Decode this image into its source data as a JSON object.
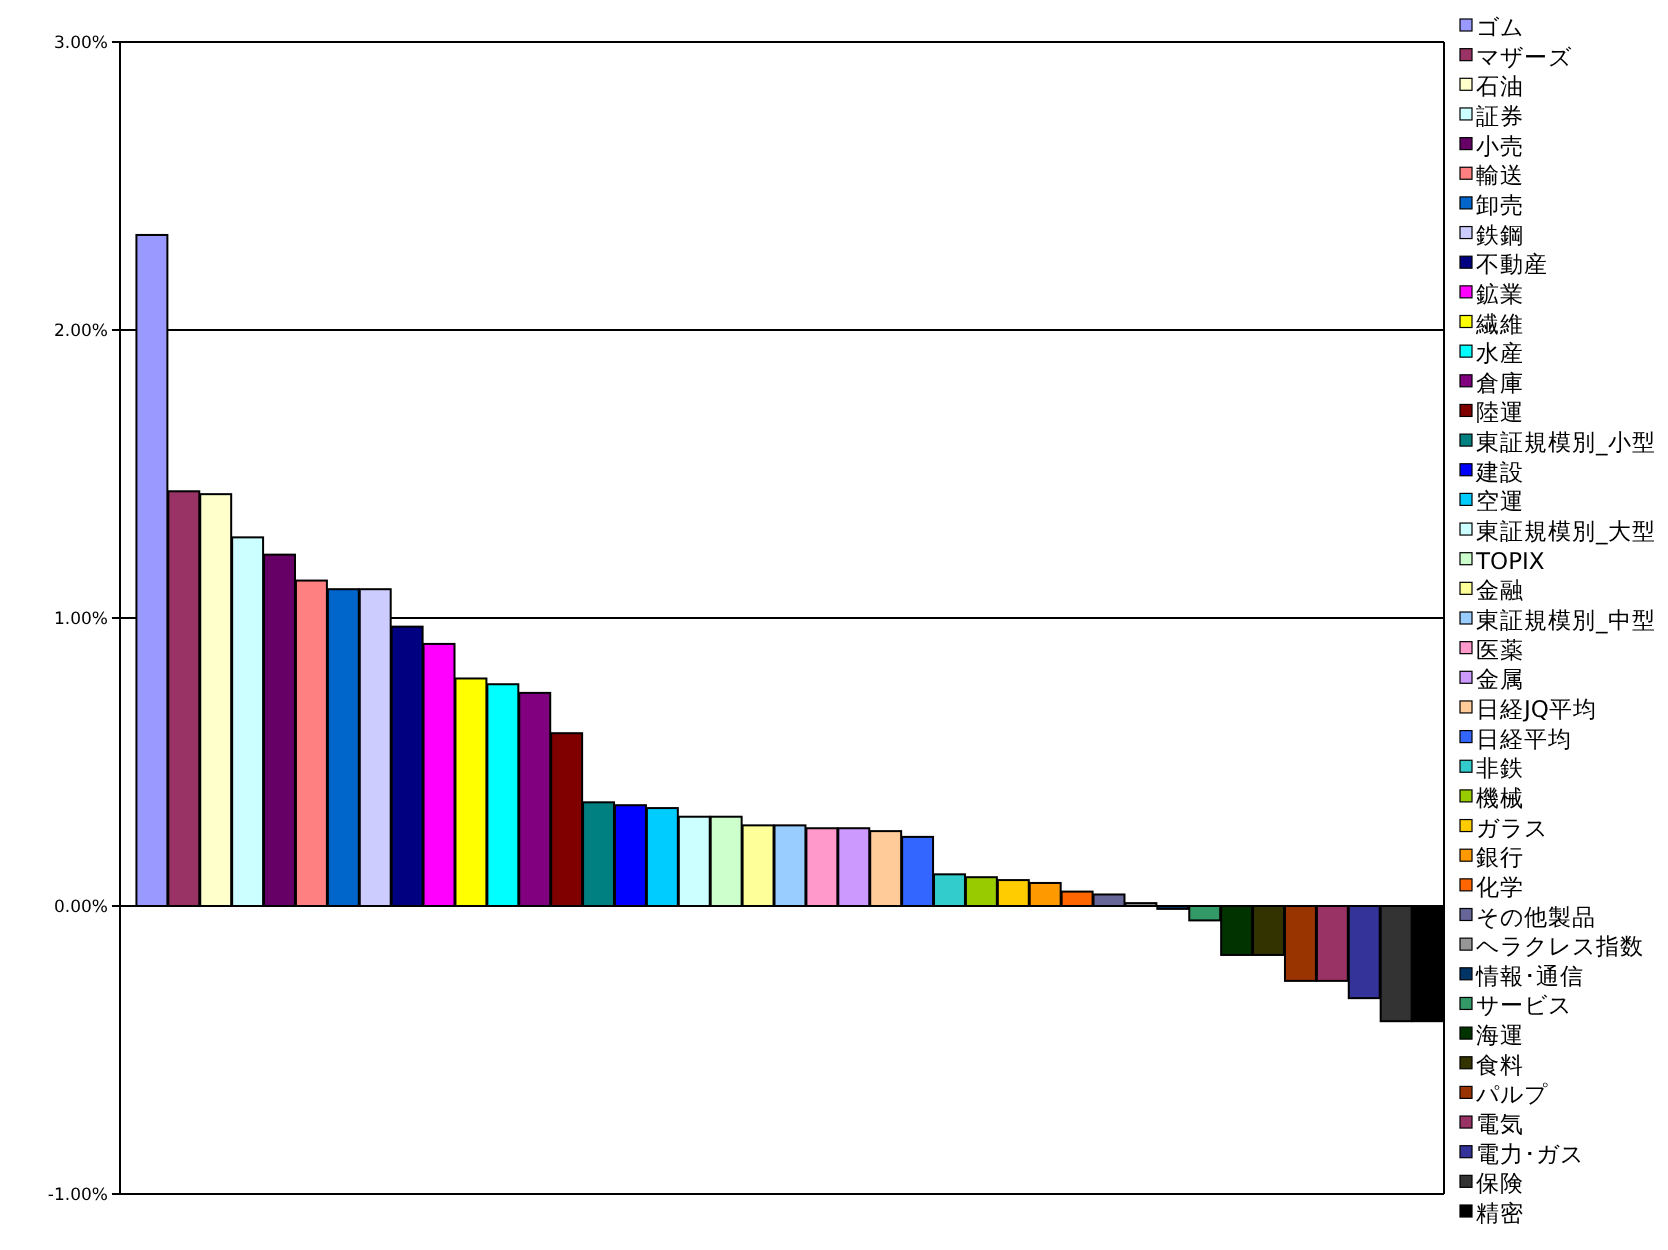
{
  "chart_data": {
    "type": "bar",
    "categories": [
      null,
      null,
      null,
      null,
      null,
      null,
      null,
      null,
      null,
      null,
      null,
      null,
      null,
      null,
      null,
      null,
      null,
      null,
      null,
      null,
      null,
      null,
      null,
      null,
      null,
      null,
      null,
      null,
      null,
      null,
      null,
      null,
      null,
      null,
      null,
      null,
      null,
      null,
      null,
      null,
      null
    ],
    "series": [
      {
        "name": "ゴム",
        "color": "#9999ff",
        "values": [
          2.33,
          null,
          null,
          null,
          null,
          null,
          null,
          null,
          null,
          null,
          null,
          null,
          null,
          null,
          null,
          null,
          null,
          null,
          null,
          null,
          null,
          null,
          null,
          null,
          null,
          null,
          null,
          null,
          null,
          null,
          null,
          null,
          null,
          null,
          null,
          null,
          null,
          null,
          null,
          null,
          null
        ]
      },
      {
        "name": "マザーズ",
        "color": "#993366",
        "values": [
          null,
          1.44,
          null,
          null,
          null,
          null,
          null,
          null,
          null,
          null,
          null,
          null,
          null,
          null,
          null,
          null,
          null,
          null,
          null,
          null,
          null,
          null,
          null,
          null,
          null,
          null,
          null,
          null,
          null,
          null,
          null,
          null,
          null,
          null,
          null,
          null,
          null,
          null,
          null,
          null,
          null
        ]
      },
      {
        "name": "石油",
        "color": "#ffffcc",
        "values": [
          null,
          null,
          1.43,
          null,
          null,
          null,
          null,
          null,
          null,
          null,
          null,
          null,
          null,
          null,
          null,
          null,
          null,
          null,
          null,
          null,
          null,
          null,
          null,
          null,
          null,
          null,
          null,
          null,
          null,
          null,
          null,
          null,
          null,
          null,
          null,
          null,
          null,
          null,
          null,
          null,
          null
        ]
      },
      {
        "name": "証券",
        "color": "#ccffff",
        "values": [
          null,
          null,
          null,
          1.28,
          null,
          null,
          null,
          null,
          null,
          null,
          null,
          null,
          null,
          null,
          null,
          null,
          null,
          null,
          null,
          null,
          null,
          null,
          null,
          null,
          null,
          null,
          null,
          null,
          null,
          null,
          null,
          null,
          null,
          null,
          null,
          null,
          null,
          null,
          null,
          null,
          null
        ]
      },
      {
        "name": "小売",
        "color": "#660066",
        "values": [
          null,
          null,
          null,
          null,
          1.22,
          null,
          null,
          null,
          null,
          null,
          null,
          null,
          null,
          null,
          null,
          null,
          null,
          null,
          null,
          null,
          null,
          null,
          null,
          null,
          null,
          null,
          null,
          null,
          null,
          null,
          null,
          null,
          null,
          null,
          null,
          null,
          null,
          null,
          null,
          null,
          null
        ]
      },
      {
        "name": "輸送",
        "color": "#ff8080",
        "values": [
          null,
          null,
          null,
          null,
          null,
          1.13,
          null,
          null,
          null,
          null,
          null,
          null,
          null,
          null,
          null,
          null,
          null,
          null,
          null,
          null,
          null,
          null,
          null,
          null,
          null,
          null,
          null,
          null,
          null,
          null,
          null,
          null,
          null,
          null,
          null,
          null,
          null,
          null,
          null,
          null,
          null
        ]
      },
      {
        "name": "卸売",
        "color": "#0066cc",
        "values": [
          null,
          null,
          null,
          null,
          null,
          null,
          1.1,
          null,
          null,
          null,
          null,
          null,
          null,
          null,
          null,
          null,
          null,
          null,
          null,
          null,
          null,
          null,
          null,
          null,
          null,
          null,
          null,
          null,
          null,
          null,
          null,
          null,
          null,
          null,
          null,
          null,
          null,
          null,
          null,
          null,
          null
        ]
      },
      {
        "name": "鉄鋼",
        "color": "#ccccff",
        "values": [
          null,
          null,
          null,
          null,
          null,
          null,
          null,
          1.1,
          null,
          null,
          null,
          null,
          null,
          null,
          null,
          null,
          null,
          null,
          null,
          null,
          null,
          null,
          null,
          null,
          null,
          null,
          null,
          null,
          null,
          null,
          null,
          null,
          null,
          null,
          null,
          null,
          null,
          null,
          null,
          null,
          null
        ]
      },
      {
        "name": "不動産",
        "color": "#000080",
        "values": [
          null,
          null,
          null,
          null,
          null,
          null,
          null,
          null,
          0.97,
          null,
          null,
          null,
          null,
          null,
          null,
          null,
          null,
          null,
          null,
          null,
          null,
          null,
          null,
          null,
          null,
          null,
          null,
          null,
          null,
          null,
          null,
          null,
          null,
          null,
          null,
          null,
          null,
          null,
          null,
          null,
          null
        ]
      },
      {
        "name": "鉱業",
        "color": "#ff00ff",
        "values": [
          null,
          null,
          null,
          null,
          null,
          null,
          null,
          null,
          null,
          0.91,
          null,
          null,
          null,
          null,
          null,
          null,
          null,
          null,
          null,
          null,
          null,
          null,
          null,
          null,
          null,
          null,
          null,
          null,
          null,
          null,
          null,
          null,
          null,
          null,
          null,
          null,
          null,
          null,
          null,
          null,
          null
        ]
      },
      {
        "name": "繊維",
        "color": "#ffff00",
        "values": [
          null,
          null,
          null,
          null,
          null,
          null,
          null,
          null,
          null,
          null,
          0.79,
          null,
          null,
          null,
          null,
          null,
          null,
          null,
          null,
          null,
          null,
          null,
          null,
          null,
          null,
          null,
          null,
          null,
          null,
          null,
          null,
          null,
          null,
          null,
          null,
          null,
          null,
          null,
          null,
          null,
          null
        ]
      },
      {
        "name": "水産",
        "color": "#00ffff",
        "values": [
          null,
          null,
          null,
          null,
          null,
          null,
          null,
          null,
          null,
          null,
          null,
          0.77,
          null,
          null,
          null,
          null,
          null,
          null,
          null,
          null,
          null,
          null,
          null,
          null,
          null,
          null,
          null,
          null,
          null,
          null,
          null,
          null,
          null,
          null,
          null,
          null,
          null,
          null,
          null,
          null,
          null
        ]
      },
      {
        "name": "倉庫",
        "color": "#800080",
        "values": [
          null,
          null,
          null,
          null,
          null,
          null,
          null,
          null,
          null,
          null,
          null,
          null,
          0.74,
          null,
          null,
          null,
          null,
          null,
          null,
          null,
          null,
          null,
          null,
          null,
          null,
          null,
          null,
          null,
          null,
          null,
          null,
          null,
          null,
          null,
          null,
          null,
          null,
          null,
          null,
          null,
          null
        ]
      },
      {
        "name": "陸運",
        "color": "#800000",
        "values": [
          null,
          null,
          null,
          null,
          null,
          null,
          null,
          null,
          null,
          null,
          null,
          null,
          null,
          0.6,
          null,
          null,
          null,
          null,
          null,
          null,
          null,
          null,
          null,
          null,
          null,
          null,
          null,
          null,
          null,
          null,
          null,
          null,
          null,
          null,
          null,
          null,
          null,
          null,
          null,
          null,
          null
        ]
      },
      {
        "name": "東証規模別_小型",
        "color": "#008080",
        "values": [
          null,
          null,
          null,
          null,
          null,
          null,
          null,
          null,
          null,
          null,
          null,
          null,
          null,
          null,
          0.36,
          null,
          null,
          null,
          null,
          null,
          null,
          null,
          null,
          null,
          null,
          null,
          null,
          null,
          null,
          null,
          null,
          null,
          null,
          null,
          null,
          null,
          null,
          null,
          null,
          null,
          null
        ]
      },
      {
        "name": "建設",
        "color": "#0000ff",
        "values": [
          null,
          null,
          null,
          null,
          null,
          null,
          null,
          null,
          null,
          null,
          null,
          null,
          null,
          null,
          null,
          0.35,
          null,
          null,
          null,
          null,
          null,
          null,
          null,
          null,
          null,
          null,
          null,
          null,
          null,
          null,
          null,
          null,
          null,
          null,
          null,
          null,
          null,
          null,
          null,
          null,
          null
        ]
      },
      {
        "name": "空運",
        "color": "#00ccff",
        "values": [
          null,
          null,
          null,
          null,
          null,
          null,
          null,
          null,
          null,
          null,
          null,
          null,
          null,
          null,
          null,
          null,
          0.34,
          null,
          null,
          null,
          null,
          null,
          null,
          null,
          null,
          null,
          null,
          null,
          null,
          null,
          null,
          null,
          null,
          null,
          null,
          null,
          null,
          null,
          null,
          null,
          null
        ]
      },
      {
        "name": "東証規模別_大型",
        "color": "#ccffff",
        "values": [
          null,
          null,
          null,
          null,
          null,
          null,
          null,
          null,
          null,
          null,
          null,
          null,
          null,
          null,
          null,
          null,
          null,
          0.31,
          null,
          null,
          null,
          null,
          null,
          null,
          null,
          null,
          null,
          null,
          null,
          null,
          null,
          null,
          null,
          null,
          null,
          null,
          null,
          null,
          null,
          null,
          null
        ]
      },
      {
        "name": "TOPIX",
        "color": "#ccffcc",
        "values": [
          null,
          null,
          null,
          null,
          null,
          null,
          null,
          null,
          null,
          null,
          null,
          null,
          null,
          null,
          null,
          null,
          null,
          null,
          0.31,
          null,
          null,
          null,
          null,
          null,
          null,
          null,
          null,
          null,
          null,
          null,
          null,
          null,
          null,
          null,
          null,
          null,
          null,
          null,
          null,
          null,
          null
        ]
      },
      {
        "name": "金融",
        "color": "#ffff99",
        "values": [
          null,
          null,
          null,
          null,
          null,
          null,
          null,
          null,
          null,
          null,
          null,
          null,
          null,
          null,
          null,
          null,
          null,
          null,
          null,
          0.28,
          null,
          null,
          null,
          null,
          null,
          null,
          null,
          null,
          null,
          null,
          null,
          null,
          null,
          null,
          null,
          null,
          null,
          null,
          null,
          null,
          null
        ]
      },
      {
        "name": "東証規模別_中型",
        "color": "#99ccff",
        "values": [
          null,
          null,
          null,
          null,
          null,
          null,
          null,
          null,
          null,
          null,
          null,
          null,
          null,
          null,
          null,
          null,
          null,
          null,
          null,
          null,
          0.28,
          null,
          null,
          null,
          null,
          null,
          null,
          null,
          null,
          null,
          null,
          null,
          null,
          null,
          null,
          null,
          null,
          null,
          null,
          null,
          null
        ]
      },
      {
        "name": "医薬",
        "color": "#ff99cc",
        "values": [
          null,
          null,
          null,
          null,
          null,
          null,
          null,
          null,
          null,
          null,
          null,
          null,
          null,
          null,
          null,
          null,
          null,
          null,
          null,
          null,
          null,
          0.27,
          null,
          null,
          null,
          null,
          null,
          null,
          null,
          null,
          null,
          null,
          null,
          null,
          null,
          null,
          null,
          null,
          null,
          null,
          null
        ]
      },
      {
        "name": "金属",
        "color": "#cc99ff",
        "values": [
          null,
          null,
          null,
          null,
          null,
          null,
          null,
          null,
          null,
          null,
          null,
          null,
          null,
          null,
          null,
          null,
          null,
          null,
          null,
          null,
          null,
          null,
          0.27,
          null,
          null,
          null,
          null,
          null,
          null,
          null,
          null,
          null,
          null,
          null,
          null,
          null,
          null,
          null,
          null,
          null,
          null
        ]
      },
      {
        "name": "日経JQ平均",
        "color": "#ffcc99",
        "values": [
          null,
          null,
          null,
          null,
          null,
          null,
          null,
          null,
          null,
          null,
          null,
          null,
          null,
          null,
          null,
          null,
          null,
          null,
          null,
          null,
          null,
          null,
          null,
          0.26,
          null,
          null,
          null,
          null,
          null,
          null,
          null,
          null,
          null,
          null,
          null,
          null,
          null,
          null,
          null,
          null,
          null
        ]
      },
      {
        "name": "日経平均",
        "color": "#3366ff",
        "values": [
          null,
          null,
          null,
          null,
          null,
          null,
          null,
          null,
          null,
          null,
          null,
          null,
          null,
          null,
          null,
          null,
          null,
          null,
          null,
          null,
          null,
          null,
          null,
          null,
          0.24,
          null,
          null,
          null,
          null,
          null,
          null,
          null,
          null,
          null,
          null,
          null,
          null,
          null,
          null,
          null,
          null
        ]
      },
      {
        "name": "非鉄",
        "color": "#33cccc",
        "values": [
          null,
          null,
          null,
          null,
          null,
          null,
          null,
          null,
          null,
          null,
          null,
          null,
          null,
          null,
          null,
          null,
          null,
          null,
          null,
          null,
          null,
          null,
          null,
          null,
          null,
          0.11,
          null,
          null,
          null,
          null,
          null,
          null,
          null,
          null,
          null,
          null,
          null,
          null,
          null,
          null,
          null
        ]
      },
      {
        "name": "機械",
        "color": "#99cc00",
        "values": [
          null,
          null,
          null,
          null,
          null,
          null,
          null,
          null,
          null,
          null,
          null,
          null,
          null,
          null,
          null,
          null,
          null,
          null,
          null,
          null,
          null,
          null,
          null,
          null,
          null,
          null,
          0.1,
          null,
          null,
          null,
          null,
          null,
          null,
          null,
          null,
          null,
          null,
          null,
          null,
          null,
          null
        ]
      },
      {
        "name": "ガラス",
        "color": "#ffcc00",
        "values": [
          null,
          null,
          null,
          null,
          null,
          null,
          null,
          null,
          null,
          null,
          null,
          null,
          null,
          null,
          null,
          null,
          null,
          null,
          null,
          null,
          null,
          null,
          null,
          null,
          null,
          null,
          null,
          0.09,
          null,
          null,
          null,
          null,
          null,
          null,
          null,
          null,
          null,
          null,
          null,
          null,
          null
        ]
      },
      {
        "name": "銀行",
        "color": "#ff9900",
        "values": [
          null,
          null,
          null,
          null,
          null,
          null,
          null,
          null,
          null,
          null,
          null,
          null,
          null,
          null,
          null,
          null,
          null,
          null,
          null,
          null,
          null,
          null,
          null,
          null,
          null,
          null,
          null,
          null,
          0.08,
          null,
          null,
          null,
          null,
          null,
          null,
          null,
          null,
          null,
          null,
          null,
          null
        ]
      },
      {
        "name": "化学",
        "color": "#ff6600",
        "values": [
          null,
          null,
          null,
          null,
          null,
          null,
          null,
          null,
          null,
          null,
          null,
          null,
          null,
          null,
          null,
          null,
          null,
          null,
          null,
          null,
          null,
          null,
          null,
          null,
          null,
          null,
          null,
          null,
          null,
          0.05,
          null,
          null,
          null,
          null,
          null,
          null,
          null,
          null,
          null,
          null,
          null
        ]
      },
      {
        "name": "その他製品",
        "color": "#666699",
        "values": [
          null,
          null,
          null,
          null,
          null,
          null,
          null,
          null,
          null,
          null,
          null,
          null,
          null,
          null,
          null,
          null,
          null,
          null,
          null,
          null,
          null,
          null,
          null,
          null,
          null,
          null,
          null,
          null,
          null,
          null,
          0.04,
          null,
          null,
          null,
          null,
          null,
          null,
          null,
          null,
          null,
          null
        ]
      },
      {
        "name": "ヘラクレス指数",
        "color": "#969696",
        "values": [
          null,
          null,
          null,
          null,
          null,
          null,
          null,
          null,
          null,
          null,
          null,
          null,
          null,
          null,
          null,
          null,
          null,
          null,
          null,
          null,
          null,
          null,
          null,
          null,
          null,
          null,
          null,
          null,
          null,
          null,
          null,
          0.01,
          null,
          null,
          null,
          null,
          null,
          null,
          null,
          null,
          null
        ]
      },
      {
        "name": "情報･通信",
        "color": "#003366",
        "values": [
          null,
          null,
          null,
          null,
          null,
          null,
          null,
          null,
          null,
          null,
          null,
          null,
          null,
          null,
          null,
          null,
          null,
          null,
          null,
          null,
          null,
          null,
          null,
          null,
          null,
          null,
          null,
          null,
          null,
          null,
          null,
          null,
          -0.01,
          null,
          null,
          null,
          null,
          null,
          null,
          null,
          null
        ]
      },
      {
        "name": "サービス",
        "color": "#339966",
        "values": [
          null,
          null,
          null,
          null,
          null,
          null,
          null,
          null,
          null,
          null,
          null,
          null,
          null,
          null,
          null,
          null,
          null,
          null,
          null,
          null,
          null,
          null,
          null,
          null,
          null,
          null,
          null,
          null,
          null,
          null,
          null,
          null,
          null,
          -0.05,
          null,
          null,
          null,
          null,
          null,
          null,
          null
        ]
      },
      {
        "name": "海運",
        "color": "#003300",
        "values": [
          null,
          null,
          null,
          null,
          null,
          null,
          null,
          null,
          null,
          null,
          null,
          null,
          null,
          null,
          null,
          null,
          null,
          null,
          null,
          null,
          null,
          null,
          null,
          null,
          null,
          null,
          null,
          null,
          null,
          null,
          null,
          null,
          null,
          null,
          -0.17,
          null,
          null,
          null,
          null,
          null,
          null
        ]
      },
      {
        "name": "食料",
        "color": "#333300",
        "values": [
          null,
          null,
          null,
          null,
          null,
          null,
          null,
          null,
          null,
          null,
          null,
          null,
          null,
          null,
          null,
          null,
          null,
          null,
          null,
          null,
          null,
          null,
          null,
          null,
          null,
          null,
          null,
          null,
          null,
          null,
          null,
          null,
          null,
          null,
          null,
          -0.17,
          null,
          null,
          null,
          null,
          null
        ]
      },
      {
        "name": "パルプ",
        "color": "#993300",
        "values": [
          null,
          null,
          null,
          null,
          null,
          null,
          null,
          null,
          null,
          null,
          null,
          null,
          null,
          null,
          null,
          null,
          null,
          null,
          null,
          null,
          null,
          null,
          null,
          null,
          null,
          null,
          null,
          null,
          null,
          null,
          null,
          null,
          null,
          null,
          null,
          null,
          -0.26,
          null,
          null,
          null,
          null
        ]
      },
      {
        "name": "電気",
        "color": "#993366",
        "values": [
          null,
          null,
          null,
          null,
          null,
          null,
          null,
          null,
          null,
          null,
          null,
          null,
          null,
          null,
          null,
          null,
          null,
          null,
          null,
          null,
          null,
          null,
          null,
          null,
          null,
          null,
          null,
          null,
          null,
          null,
          null,
          null,
          null,
          null,
          null,
          null,
          null,
          -0.26,
          null,
          null,
          null
        ]
      },
      {
        "name": "電力･ガス",
        "color": "#333399",
        "values": [
          null,
          null,
          null,
          null,
          null,
          null,
          null,
          null,
          null,
          null,
          null,
          null,
          null,
          null,
          null,
          null,
          null,
          null,
          null,
          null,
          null,
          null,
          null,
          null,
          null,
          null,
          null,
          null,
          null,
          null,
          null,
          null,
          null,
          null,
          null,
          null,
          null,
          null,
          -0.32,
          null,
          null
        ]
      },
      {
        "name": "保険",
        "color": "#333333",
        "values": [
          null,
          null,
          null,
          null,
          null,
          null,
          null,
          null,
          null,
          null,
          null,
          null,
          null,
          null,
          null,
          null,
          null,
          null,
          null,
          null,
          null,
          null,
          null,
          null,
          null,
          null,
          null,
          null,
          null,
          null,
          null,
          null,
          null,
          null,
          null,
          null,
          null,
          null,
          null,
          -0.4,
          null
        ]
      },
      {
        "name": "精密",
        "color": "#000000",
        "values": [
          null,
          null,
          null,
          null,
          null,
          null,
          null,
          null,
          null,
          null,
          null,
          null,
          null,
          null,
          null,
          null,
          null,
          null,
          null,
          null,
          null,
          null,
          null,
          null,
          null,
          null,
          null,
          null,
          null,
          null,
          null,
          null,
          null,
          null,
          null,
          null,
          null,
          null,
          null,
          null,
          -0.4
        ]
      }
    ],
    "ylim": [
      -1,
      3
    ],
    "yticks": [
      {
        "value": -1,
        "label": "-1.00%"
      },
      {
        "value": 0,
        "label": "0.00%"
      },
      {
        "value": 1,
        "label": "1.00%"
      },
      {
        "value": 2,
        "label": "2.00%"
      },
      {
        "value": 3,
        "label": "3.00%"
      }
    ],
    "grid": "y",
    "legend": "right",
    "tick_labels": "y"
  }
}
